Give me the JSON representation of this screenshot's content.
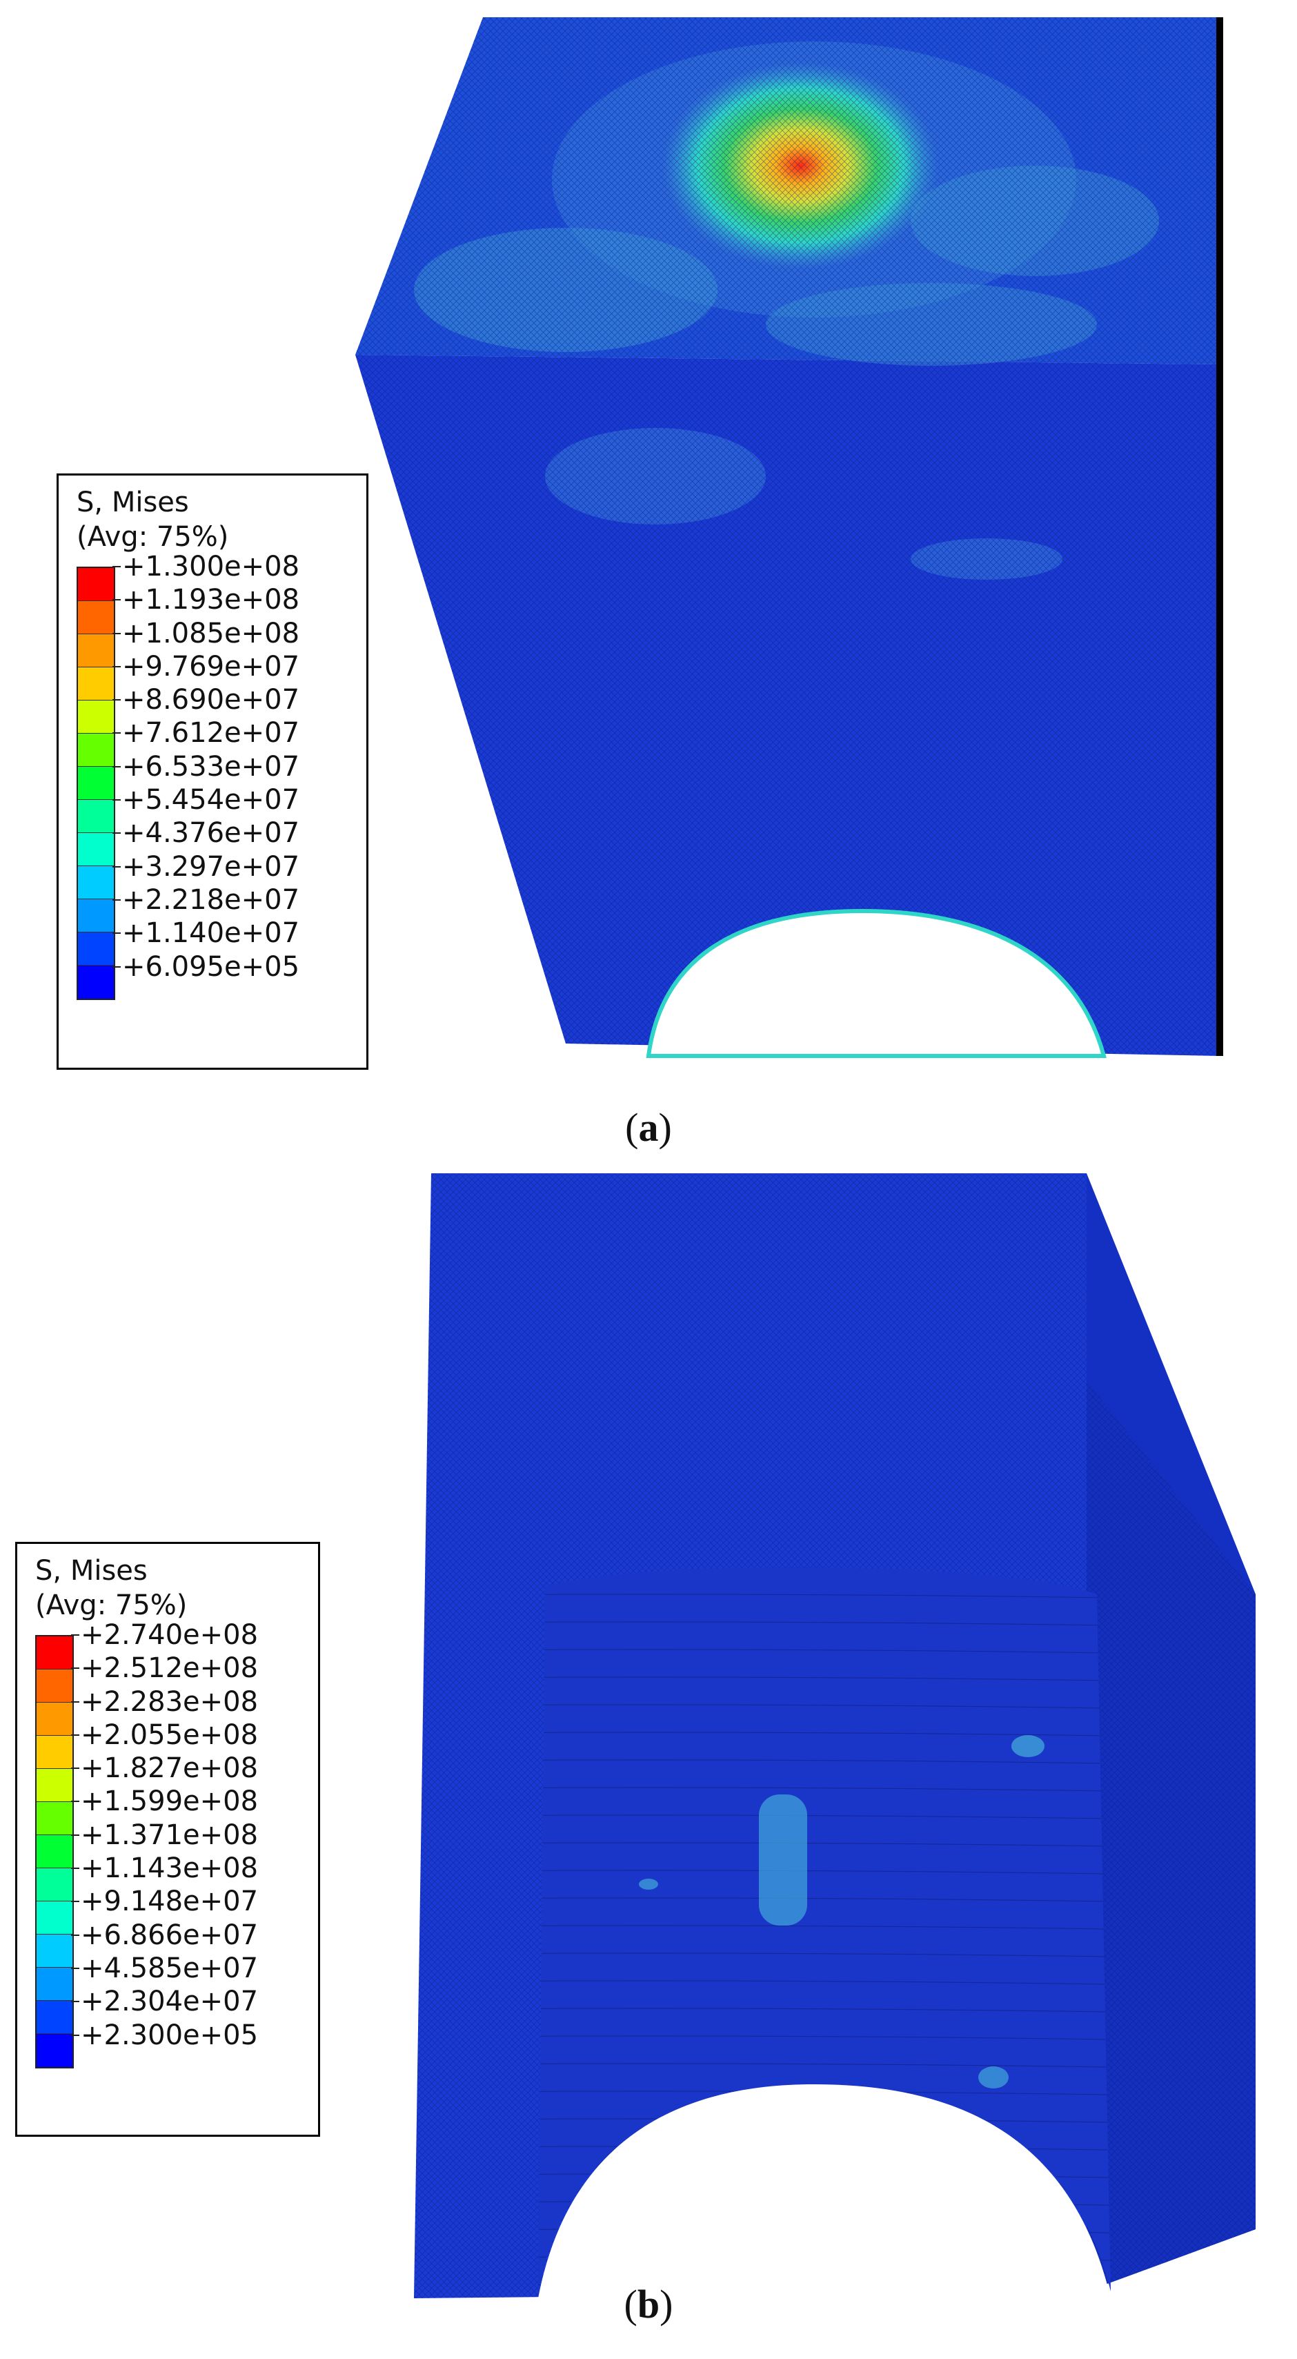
{
  "panels": [
    {
      "id": "a",
      "caption_open": "(",
      "caption_letter": "a",
      "caption_close": ")",
      "legend": {
        "title_line1": "S, Mises",
        "title_line2": "(Avg: 75%)",
        "colors": [
          "#ff0000",
          "#ff6600",
          "#ff9900",
          "#ffcc00",
          "#ccff00",
          "#66ff00",
          "#00ff33",
          "#00ff99",
          "#00ffcc",
          "#00ccff",
          "#0099ff",
          "#0044ff",
          "#0000ff"
        ],
        "values": [
          "+1.300e+08",
          "+1.193e+08",
          "+1.085e+08",
          "+9.769e+07",
          "+8.690e+07",
          "+7.612e+07",
          "+6.533e+07",
          "+5.454e+07",
          "+4.376e+07",
          "+3.297e+07",
          "+2.218e+07",
          "+1.140e+07",
          "+6.095e+05"
        ]
      }
    },
    {
      "id": "b",
      "caption_open": "(",
      "caption_letter": "b",
      "caption_close": ")",
      "legend": {
        "title_line1": "S, Mises",
        "title_line2": "(Avg: 75%)",
        "colors": [
          "#ff0000",
          "#ff6600",
          "#ff9900",
          "#ffcc00",
          "#ccff00",
          "#66ff00",
          "#00ff33",
          "#00ff99",
          "#00ffcc",
          "#00ccff",
          "#0099ff",
          "#0044ff",
          "#0000ff"
        ],
        "values": [
          "+2.740e+08",
          "+2.512e+08",
          "+2.283e+08",
          "+2.055e+08",
          "+1.827e+08",
          "+1.599e+08",
          "+1.371e+08",
          "+1.143e+08",
          "+9.148e+07",
          "+6.866e+07",
          "+4.585e+07",
          "+2.304e+07",
          "+2.300e+05"
        ]
      }
    }
  ],
  "contour_colors": {
    "base": "#1a3ad6",
    "mid": "#2a67e0",
    "light": "#3fa2d8",
    "cyan": "#2fd6c8",
    "green": "#39d36a",
    "yellow": "#d6e23a",
    "orange": "#ff9a1a",
    "red": "#ff2a12",
    "edge_dark": "#000000"
  }
}
